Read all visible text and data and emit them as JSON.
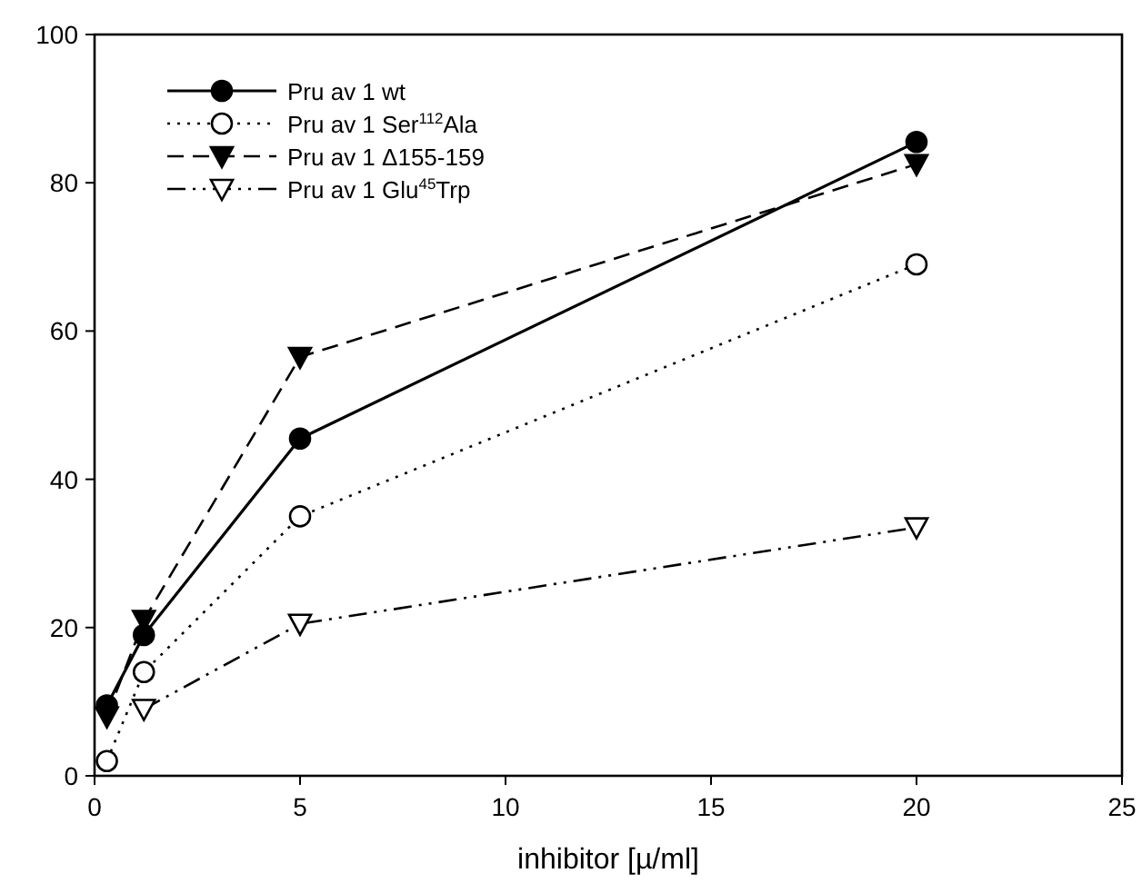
{
  "chart_data": {
    "type": "line",
    "xlabel": "inhibitor [µ/ml]",
    "xlim": [
      0,
      25
    ],
    "xticks": [
      0,
      5,
      10,
      15,
      20,
      25
    ],
    "ylim": [
      0,
      100
    ],
    "yticks": [
      0,
      20,
      40,
      60,
      80,
      100
    ],
    "grid": false,
    "legend": "top left",
    "series": [
      {
        "name": "Pru av 1 wt",
        "color": "#000000",
        "x": [
          0.3,
          1.2,
          5,
          20
        ],
        "values": [
          9.5,
          19,
          45.5,
          85.5
        ],
        "marker": "circle",
        "line_style": "solid"
      },
      {
        "name": "Pru av 1 Ser$^{112}$Ala",
        "color": "#000000",
        "x": [
          0.3,
          1.2,
          5,
          20
        ],
        "values": [
          2,
          14,
          35,
          69
        ],
        "marker": "circle-open",
        "line_style": "dotted"
      },
      {
        "name": "Pru av 1 Δ155-159",
        "color": "#000000",
        "x": [
          0.3,
          1.2,
          5,
          20
        ],
        "values": [
          8,
          21,
          56.5,
          82.5
        ],
        "marker": "triangle-down",
        "line_style": "dashed"
      },
      {
        "name": "Pru av 1 Glu$^{45}$Trp",
        "color": "#000000",
        "x": [
          1.2,
          5,
          20
        ],
        "values": [
          9,
          20.5,
          33.5
        ],
        "marker": "triangle-down-open",
        "line_style": "dashdot"
      }
    ]
  }
}
